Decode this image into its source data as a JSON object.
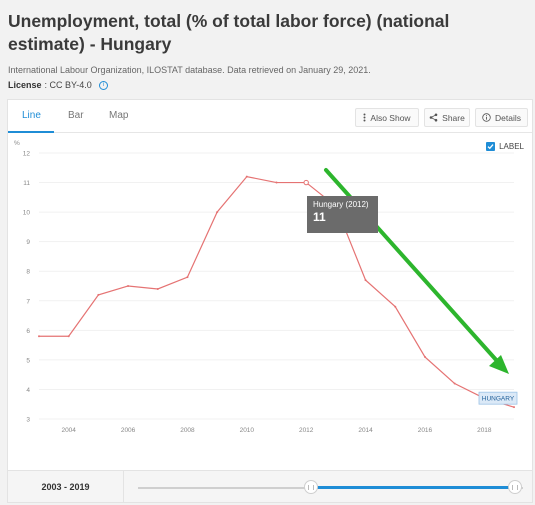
{
  "page": {
    "title": "Unemployment, total (% of total labor force) (national estimate) - Hungary",
    "source": "International Labour Organization, ILOSTAT database. Data retrieved on January 29, 2021.",
    "license_label": "License",
    "license_value": ": CC BY-4.0"
  },
  "tabs": [
    {
      "label": "Line",
      "active": true
    },
    {
      "label": "Bar",
      "active": false
    },
    {
      "label": "Map",
      "active": false
    }
  ],
  "toolbar": {
    "also_show": "Also Show",
    "share": "Share",
    "details": "Details"
  },
  "label_toggle": {
    "text": "LABEL",
    "checked": true
  },
  "tooltip": {
    "name": "Hungary (2012)",
    "value": "11"
  },
  "range": {
    "label": "2003 - 2019"
  },
  "colors": {
    "line": "#e57373",
    "accent": "#1f8dd6",
    "arrow": "#2db52d"
  },
  "chart_data": {
    "type": "line",
    "ylabel": "%",
    "ylim": [
      3,
      12
    ],
    "yticks": [
      "3",
      "4",
      "5",
      "6",
      "7",
      "8",
      "9",
      "10",
      "11",
      "12"
    ],
    "xticks": [
      "2004",
      "2006",
      "2008",
      "2010",
      "2012",
      "2014",
      "2016",
      "2018"
    ],
    "series": [
      {
        "name": "HUNGARY",
        "x": [
          2003,
          2004,
          2005,
          2006,
          2007,
          2008,
          2009,
          2010,
          2011,
          2012,
          2013,
          2014,
          2015,
          2016,
          2017,
          2018,
          2019
        ],
        "values": [
          5.8,
          5.8,
          7.2,
          7.5,
          7.4,
          7.8,
          10.0,
          11.2,
          11.0,
          11.0,
          10.2,
          7.7,
          6.8,
          5.1,
          4.2,
          3.7,
          3.4
        ]
      }
    ],
    "highlight": {
      "x": 2012,
      "value": 11
    },
    "annotation": {
      "type": "arrow",
      "color": "#2db52d"
    }
  }
}
